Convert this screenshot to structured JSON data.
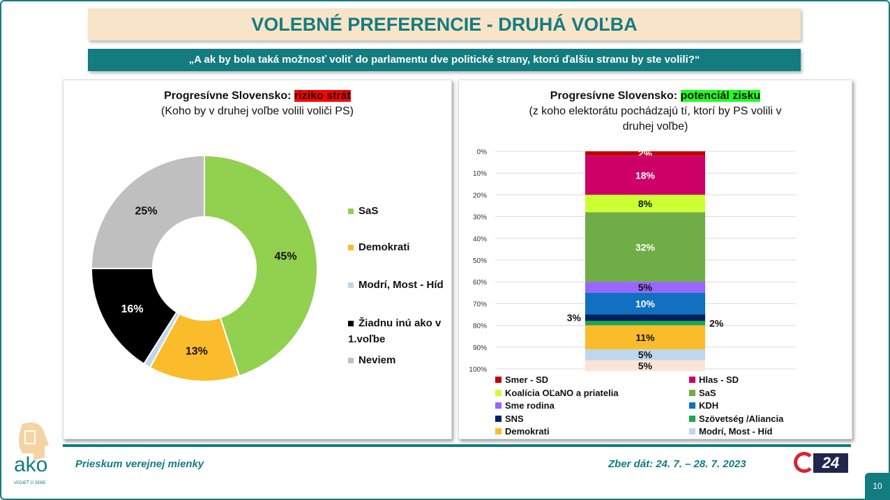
{
  "header": {
    "title": "VOLEBNÉ PREFERENCIE - DRUHÁ VOĽBA",
    "question": "„A ak by bola taká možnosť voliť do parlamentu dve politické strany, ktorú ďalšiu stranu by ste volili?“"
  },
  "footer": {
    "survey": "Prieskum verejnej mienky",
    "dates": "Zber dát: 24. 7. – 28. 7. 2023",
    "page": "10",
    "logo_text": "ako",
    "logo_tagline": "VEDIEŤ O SEBE",
    "partner_logo": "24"
  },
  "chart_data": [
    {
      "type": "pie",
      "variant": "donut",
      "title_prefix": "Progresívne Slovensko:",
      "title_highlight": "riziko strát",
      "subtitle": "(Koho by v druhej voľbe volili voliči PS)",
      "legend_position": "right",
      "slices": [
        {
          "label": "SaS",
          "value": 45,
          "display": "45%",
          "color": "#92d050"
        },
        {
          "label": "Demokrati",
          "value": 13,
          "display": "13%",
          "color": "#fbbc2c"
        },
        {
          "label": "Modrí, Most - Híd",
          "value": 1,
          "display": "1%",
          "color": "#bdd7ee"
        },
        {
          "label": "Žiadnu inú ako v 1.voľbe",
          "value": 16,
          "display": "16%",
          "color": "#000000"
        },
        {
          "label": "Neviem",
          "value": 25,
          "display": "25%",
          "color": "#bfbfbf"
        }
      ]
    },
    {
      "type": "bar",
      "variant": "100% stacked",
      "title_prefix": "Progresívne Slovensko:",
      "title_highlight": "potenciál zisku",
      "subtitle": "(z kohu elektorátu pochádzajú tí, ktorí by PS volili v druhej voľbe)",
      "subtitle_lines": [
        "(z koho elektorátu pochádzajú tí, ktorí by PS volili v",
        "druhej voľbe)"
      ],
      "yticks": [
        "0%",
        "10%",
        "20%",
        "30%",
        "40%",
        "50%",
        "60%",
        "70%",
        "80%",
        "90%",
        "100%"
      ],
      "ylim": [
        0,
        100
      ],
      "grid": true,
      "legend_position": "bottom",
      "series": [
        {
          "name": "Smer - SD",
          "value": 2,
          "display": "2%",
          "color": "#c00000",
          "label_color": "#fff"
        },
        {
          "name": "Hlas - SD",
          "value": 18,
          "display": "18%",
          "color": "#cc0066",
          "label_color": "#fff"
        },
        {
          "name": "Koalícia OĽaNO a priatelia",
          "value": 8,
          "display": "8%",
          "color": "#ccff33",
          "label_color": "#111"
        },
        {
          "name": "SaS",
          "value": 32,
          "display": "32%",
          "color": "#70ad47",
          "label_color": "#fff"
        },
        {
          "name": "Sme rodina",
          "value": 5,
          "display": "5%",
          "color": "#9966ff",
          "label_color": "#111"
        },
        {
          "name": "KDH",
          "value": 10,
          "display": "10%",
          "color": "#1170c0",
          "label_color": "#fff"
        },
        {
          "name": "SNS",
          "value": 3,
          "display": "3%",
          "color": "#002060",
          "label_color": "#fff"
        },
        {
          "name": "Szövetség /Aliancia",
          "value": 2,
          "display": "2%",
          "color": "#1aa84a",
          "label_color": "#111"
        },
        {
          "name": "Demokrati",
          "value": 11,
          "display": "11%",
          "color": "#fbbc2c",
          "label_color": "#111"
        },
        {
          "name": "Modrí, Most - Híd",
          "value": 5,
          "display": "5%",
          "color": "#bdd7ee",
          "label_color": "#111"
        },
        {
          "name": "",
          "value": 5,
          "display": "5%",
          "color": "#fbe5d6",
          "label_color": "#111"
        }
      ]
    }
  ]
}
